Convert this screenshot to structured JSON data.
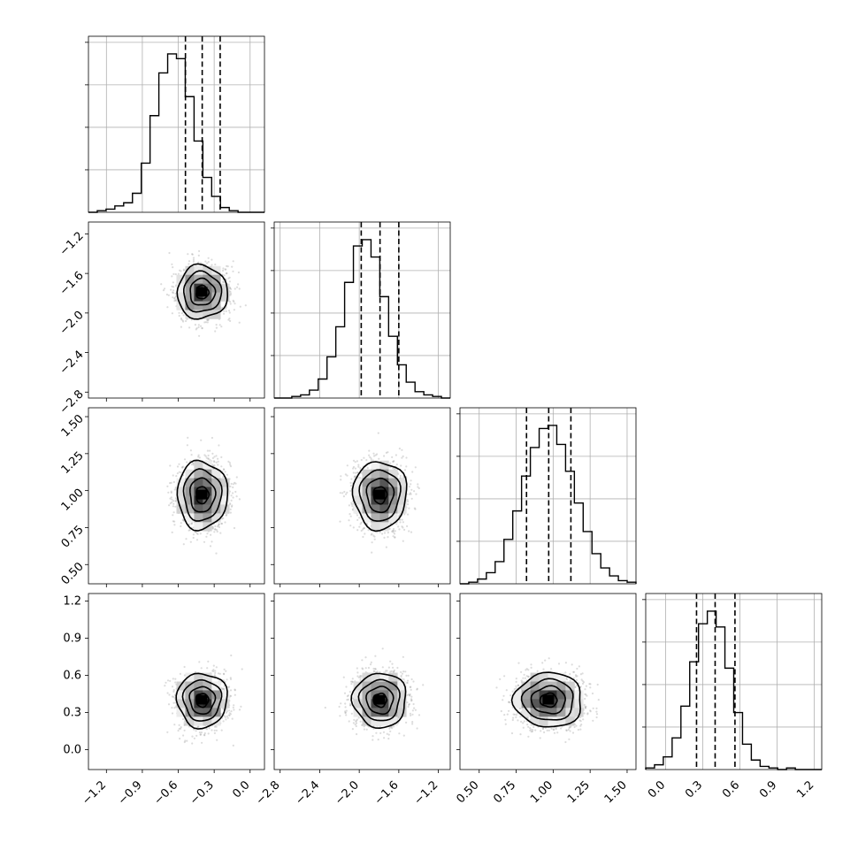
{
  "chart_data": {
    "type": "corner",
    "parameters": [
      {
        "mean": -0.4,
        "sd": 0.105,
        "quantiles": [
          -0.54,
          -0.4,
          -0.25
        ],
        "lim": [
          -1.35,
          0.12
        ],
        "ticks": [
          -1.2,
          -0.9,
          -0.6,
          -0.3,
          0.0
        ],
        "tick_labels": [
          "−1.2",
          "−0.9",
          "−0.6",
          "−0.3",
          "0.0"
        ]
      },
      {
        "mean": -1.79,
        "sd": 0.135,
        "quantiles": [
          -1.98,
          -1.79,
          -1.6
        ],
        "lim": [
          -2.86,
          -1.08
        ],
        "ticks": [
          -2.8,
          -2.4,
          -2.0,
          -1.6,
          -1.2
        ],
        "tick_labels": [
          "−2.8",
          "−2.4",
          "−2.0",
          "−1.6",
          "−1.2"
        ]
      },
      {
        "mean": 0.97,
        "sd": 0.115,
        "quantiles": [
          0.82,
          0.97,
          1.12
        ],
        "lim": [
          0.37,
          1.56
        ],
        "ticks": [
          0.5,
          0.75,
          1.0,
          1.25,
          1.5
        ],
        "tick_labels": [
          "0.50",
          "0.75",
          "1.00",
          "1.25",
          "1.50"
        ]
      },
      {
        "mean": 0.4,
        "sd": 0.11,
        "quantiles": [
          0.25,
          0.4,
          0.56
        ],
        "lim": [
          -0.16,
          1.26
        ],
        "ticks": [
          0.0,
          0.3,
          0.6,
          0.9,
          1.2
        ],
        "tick_labels": [
          "0.0",
          "0.3",
          "0.6",
          "0.9",
          "1.2"
        ]
      }
    ],
    "histograms": [
      {
        "param": 0,
        "bin_edges": [
          -1.35,
          0.12
        ],
        "bins": 20,
        "counts": [
          0,
          1,
          2,
          4,
          6,
          12,
          31,
          61,
          88,
          100,
          97,
          73,
          45,
          22,
          10,
          3,
          1,
          0,
          0,
          0
        ]
      },
      {
        "param": 1,
        "bins": 20,
        "counts": [
          0,
          0,
          1,
          2,
          5,
          12,
          26,
          45,
          73,
          96,
          100,
          89,
          64,
          39,
          21,
          10,
          4,
          2,
          1,
          0
        ]
      },
      {
        "param": 2,
        "bins": 20,
        "counts": [
          0,
          1,
          3,
          7,
          14,
          28,
          46,
          68,
          86,
          98,
          100,
          88,
          71,
          51,
          33,
          19,
          10,
          5,
          2,
          1
        ]
      },
      {
        "param": 3,
        "bins": 20,
        "counts": [
          1,
          3,
          8,
          20,
          40,
          68,
          92,
          100,
          90,
          64,
          36,
          16,
          6,
          2,
          1,
          0,
          1,
          0,
          0,
          0
        ]
      }
    ],
    "contour_levels_sigma": [
      0.5,
      1.0,
      1.5,
      2.0
    ],
    "grid": true,
    "colors": {
      "points": "#9a9a9a",
      "lines": "#000000",
      "grid": "#b0b0b0"
    }
  }
}
